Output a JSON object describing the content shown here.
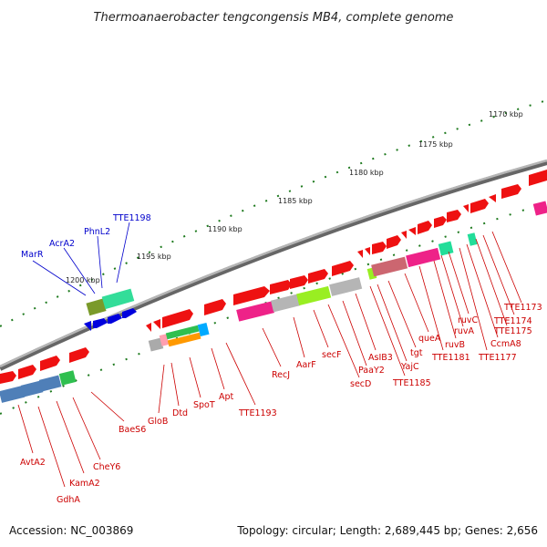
{
  "title": "Thermoanaerobacter tengcongensis MB4, complete genome",
  "footer": {
    "accession": "Accession: NC_003869",
    "summary": "Topology: circular; Length: 2,689,445 bp; Genes: 2,656"
  },
  "colors": {
    "backbone": "#808080",
    "tick": "#1e7a1e",
    "label_red": "#cc0000",
    "label_blue": "#0000cc"
  },
  "kbp_labels": [
    "1170 kbp",
    "1175 kbp",
    "1180 kbp",
    "1185 kbp",
    "1190 kbp",
    "1195 kbp",
    "1200 kbp"
  ],
  "genes_upper_labels": [
    "MarR",
    "AcrA2",
    "PhnL2",
    "TTE1198"
  ],
  "genes_lower_labels": [
    "AvtA2",
    "GdhA",
    "KamA2",
    "CheY6",
    "BaeS6",
    "GloB",
    "Dtd",
    "SpoT",
    "Apt",
    "TTE1193",
    "RecJ",
    "AarF",
    "secF",
    "secD",
    "PaaY2",
    "AsIB3",
    "TTE1185",
    "YajC",
    "tgt",
    "queA",
    "TTE1181",
    "ruvB",
    "ruvA",
    "ruvC",
    "TTE1177",
    "CcmA8",
    "TTE1175",
    "TTE1174",
    "TTE1173"
  ]
}
